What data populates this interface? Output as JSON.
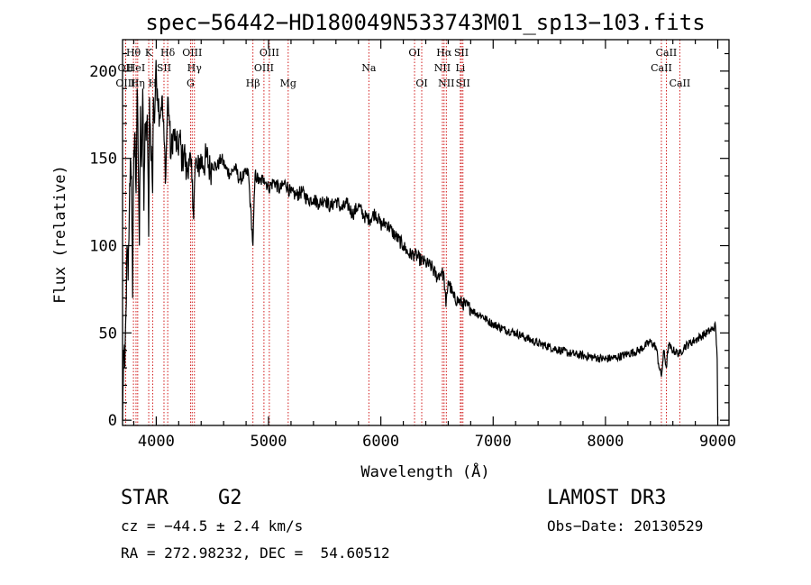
{
  "chart_data": {
    "type": "line",
    "title": "spec−56442−HD180049N533743M01_sp13−103.fits",
    "xlabel": "Wavelength (Å)",
    "ylabel": "Flux (relative)",
    "xlim": [
      3700,
      9100
    ],
    "ylim": [
      -3,
      218
    ],
    "xticks": [
      4000,
      5000,
      6000,
      7000,
      8000,
      9000
    ],
    "yticks": [
      0,
      50,
      100,
      150,
      200
    ],
    "grid": false,
    "line_color": "#000000",
    "marker_color": "#cc0000",
    "series": [
      {
        "name": "spectrum",
        "x": [
          3700,
          3710,
          3720,
          3730,
          3740,
          3750,
          3760,
          3770,
          3780,
          3790,
          3800,
          3810,
          3820,
          3830,
          3840,
          3850,
          3860,
          3870,
          3880,
          3890,
          3900,
          3910,
          3920,
          3933,
          3940,
          3950,
          3960,
          3968,
          3975,
          3985,
          3995,
          4010,
          4030,
          4050,
          4070,
          4085,
          4102,
          4115,
          4130,
          4150,
          4170,
          4190,
          4210,
          4230,
          4250,
          4270,
          4290,
          4310,
          4330,
          4340,
          4350,
          4370,
          4390,
          4420,
          4450,
          4480,
          4500,
          4540,
          4580,
          4620,
          4660,
          4700,
          4740,
          4780,
          4820,
          4861,
          4880,
          4920,
          4960,
          5000,
          5050,
          5100,
          5150,
          5200,
          5250,
          5300,
          5350,
          5400,
          5450,
          5500,
          5550,
          5600,
          5650,
          5700,
          5750,
          5800,
          5850,
          5900,
          5950,
          6000,
          6050,
          6100,
          6150,
          6200,
          6250,
          6300,
          6350,
          6400,
          6450,
          6500,
          6540,
          6563,
          6580,
          6600,
          6650,
          6700,
          6750,
          6800,
          6850,
          6900,
          6950,
          7000,
          7100,
          7200,
          7300,
          7400,
          7500,
          7600,
          7700,
          7800,
          7900,
          8000,
          8100,
          8200,
          8300,
          8400,
          8450,
          8480,
          8498,
          8520,
          8542,
          8560,
          8600,
          8662,
          8700,
          8750,
          8800,
          8850,
          8900,
          8950,
          8980,
          8995,
          9000
        ],
        "values": [
          0,
          40,
          30,
          60,
          100,
          80,
          120,
          150,
          140,
          70,
          155,
          165,
          130,
          190,
          150,
          100,
          180,
          145,
          190,
          120,
          170,
          160,
          175,
          105,
          185,
          160,
          150,
          130,
          185,
          170,
          200,
          190,
          175,
          185,
          160,
          140,
          185,
          175,
          150,
          165,
          160,
          155,
          162,
          148,
          155,
          140,
          150,
          145,
          120,
          135,
          148,
          142,
          150,
          146,
          151,
          143,
          147,
          145,
          150,
          144,
          141,
          145,
          138,
          140,
          142,
          100,
          141,
          136,
          139,
          133,
          137,
          132,
          136,
          130,
          129,
          131,
          126,
          127,
          124,
          127,
          122,
          126,
          121,
          124,
          118,
          123,
          117,
          115,
          119,
          112,
          113,
          108,
          104,
          100,
          95,
          95,
          92,
          90,
          88,
          82,
          85,
          82,
          65,
          80,
          70,
          68,
          66,
          64,
          61,
          60,
          57,
          55,
          52,
          50,
          47,
          44,
          42,
          40,
          38,
          37,
          36,
          35,
          36,
          38,
          40,
          45,
          42,
          30,
          25,
          40,
          30,
          43,
          40,
          38,
          42,
          44,
          46,
          48,
          50,
          52,
          54,
          35,
          0
        ]
      }
    ],
    "lines": [
      {
        "name": "Hθ",
        "x": 3797,
        "row": 1
      },
      {
        "name": "OII",
        "x": 3727,
        "row": 2
      },
      {
        "name": "OIII",
        "x": 3727,
        "row": 3
      },
      {
        "name": "HeI",
        "x": 3820,
        "row": 2
      },
      {
        "name": "Hη",
        "x": 3835,
        "row": 3
      },
      {
        "name": "K",
        "x": 3933,
        "row": 1
      },
      {
        "name": "H",
        "x": 3968,
        "row": 3
      },
      {
        "name": "SII",
        "x": 4069,
        "row": 2
      },
      {
        "name": "Hδ",
        "x": 4102,
        "row": 1
      },
      {
        "name": "OIII",
        "x": 4320,
        "row": 1
      },
      {
        "name": "Hγ",
        "x": 4340,
        "row": 2
      },
      {
        "name": "G",
        "x": 4305,
        "row": 3
      },
      {
        "name": "Hβ",
        "x": 4861,
        "row": 3
      },
      {
        "name": "OIII",
        "x": 4959,
        "row": 2
      },
      {
        "name": "OIII",
        "x": 5007,
        "row": 1
      },
      {
        "name": "Mg",
        "x": 5175,
        "row": 3
      },
      {
        "name": "Na",
        "x": 5893,
        "row": 2
      },
      {
        "name": "OI",
        "x": 6300,
        "row": 1
      },
      {
        "name": "OI",
        "x": 6364,
        "row": 3
      },
      {
        "name": "Hα",
        "x": 6563,
        "row": 1
      },
      {
        "name": "NII",
        "x": 6548,
        "row": 2
      },
      {
        "name": "NII",
        "x": 6583,
        "row": 3
      },
      {
        "name": "SII",
        "x": 6717,
        "row": 1
      },
      {
        "name": "Li",
        "x": 6708,
        "row": 2
      },
      {
        "name": "SII",
        "x": 6731,
        "row": 3
      },
      {
        "name": "CaII",
        "x": 8498,
        "row": 2
      },
      {
        "name": "CaII",
        "x": 8542,
        "row": 1
      },
      {
        "name": "CaII",
        "x": 8662,
        "row": 3
      }
    ]
  },
  "info": {
    "object_class": "STAR",
    "subclass": "G2",
    "survey": "LAMOST DR3",
    "redshift": "cz = −44.5 ± 2.4 km/s",
    "obs_date": "Obs−Date: 20130529",
    "coords": "RA = 272.98232, DEC =  54.60512"
  }
}
